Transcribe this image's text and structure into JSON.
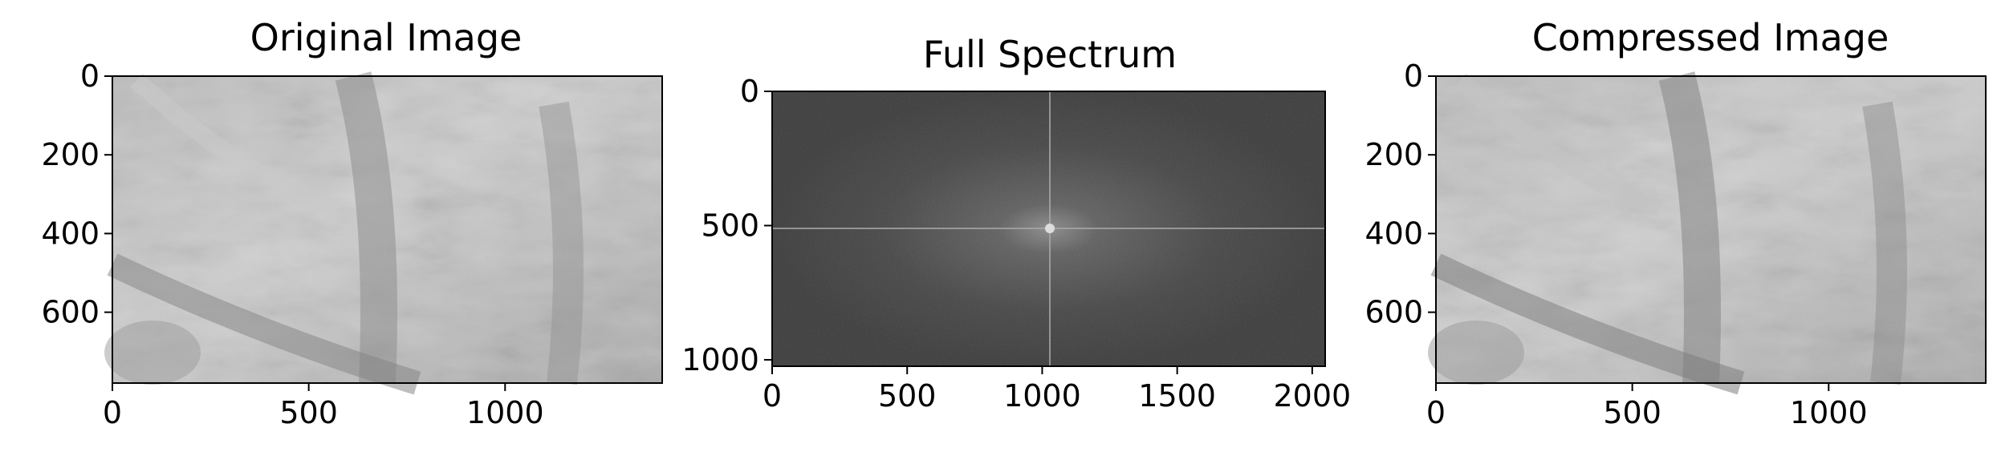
{
  "chart_data": [
    {
      "type": "image",
      "title": "Original Image",
      "xlim": [
        0,
        1400
      ],
      "ylim": [
        780,
        0
      ],
      "xticks": [
        0,
        500,
        1000
      ],
      "yticks": [
        0,
        200,
        400,
        600
      ],
      "tick_labels_x": [
        "0",
        "500",
        "1000"
      ],
      "tick_labels_y": [
        "0",
        "200",
        "400",
        "600"
      ],
      "colormap": "gray"
    },
    {
      "type": "image",
      "title": "Full Spectrum",
      "xlim": [
        0,
        2048
      ],
      "ylim": [
        1024,
        0
      ],
      "xticks": [
        0,
        500,
        1000,
        1500,
        2000
      ],
      "yticks": [
        0,
        500,
        1000
      ],
      "tick_labels_x": [
        "0",
        "500",
        "1000",
        "1500",
        "2000"
      ],
      "tick_labels_y": [
        "0",
        "500",
        "1000"
      ],
      "colormap": "gray"
    },
    {
      "type": "image",
      "title": "Compressed Image",
      "xlim": [
        0,
        1400
      ],
      "ylim": [
        780,
        0
      ],
      "xticks": [
        0,
        500,
        1000
      ],
      "yticks": [
        0,
        200,
        400,
        600
      ],
      "tick_labels_x": [
        "0",
        "500",
        "1000"
      ],
      "tick_labels_y": [
        "0",
        "200",
        "400",
        "600"
      ],
      "colormap": "gray"
    }
  ]
}
